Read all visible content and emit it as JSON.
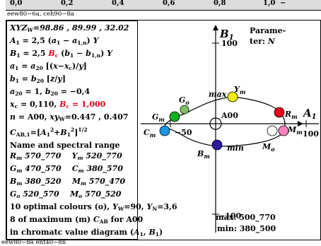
{
  "header": {
    "top_values": [
      "0,0",
      "0,2",
      "0,4",
      "0,6",
      "0,8",
      "1,0"
    ],
    "top_suffix": "−",
    "caption_top": "eew80−6a, ceh90−8a",
    "caption_bottom": "eew80−8a ent40−8n"
  },
  "left_panel": {
    "line1": "XYZW=98.86 , 89.99 , 32.02",
    "line2": "A1 = 2,5 (a1 − a1,n) Y",
    "line3": "B1 = 2,5 Bc (b1 − b1,n) Y",
    "line4": "a1 = a20 [(x−xc)/y]",
    "line5": "b1 = b20 [z/y]",
    "line6": "a20 = 1, b20 = −0,4",
    "line7": "xc = 0,110, Bc = 1,000",
    "line8": "n = A00, xyW=0.447 , 0.407",
    "line9": "CAB,1=[A12+B12]1/2",
    "line10": "Name and spectral range",
    "line11": "Rm 570_770   Ym 520_770",
    "line12": "Gm 470_570   Cm 380_570",
    "line13": "Bm 380_520   Mm 570_470",
    "line14": "Go 520_570   Mo 570_520",
    "line15": "10 optimal colours (o), YW=90, YN=3,6",
    "line16": "8 of maximum (m) CAB for A00",
    "line17": "in chromatc value diagram (A1, B1)"
  },
  "diagram": {
    "axis_b1": "B1",
    "axis_a1": "A1",
    "parameter": "Parame-",
    "parameter2": "ter: N",
    "tick_100_top": "100",
    "tick_100_right": "100",
    "tick_minus50": "−50",
    "tick_minus100": "−100",
    "origin": "A00",
    "max_label": "max",
    "min_label": "min",
    "max_range": "max: 500_770",
    "min_range": "min: 380_500",
    "points": [
      {
        "name": "Ym",
        "color": "#f2f200"
      },
      {
        "name": "Rm",
        "color": "#e0001a"
      },
      {
        "name": "Mm",
        "color": "#ff80c0"
      },
      {
        "name": "Bm",
        "color": "#2a1aa0"
      },
      {
        "name": "Cm",
        "color": "#1a98e0"
      },
      {
        "name": "Gm",
        "color": "#10b020"
      },
      {
        "name": "Go",
        "color": "#80c060"
      },
      {
        "name": "Mo",
        "color": "#ffffff"
      }
    ]
  }
}
